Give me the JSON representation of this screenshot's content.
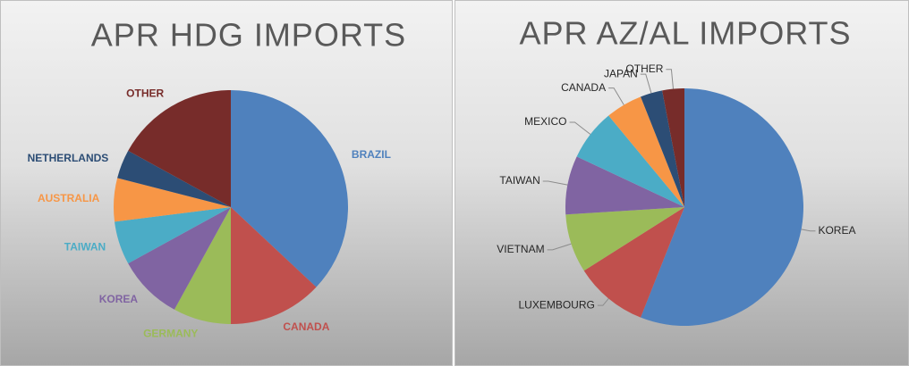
{
  "chart_data": [
    {
      "type": "pie",
      "title": "APR HDG IMPORTS",
      "categories": [
        "BRAZIL",
        "CANADA",
        "GERMANY",
        "KOREA",
        "TAIWAN",
        "AUSTRALIA",
        "NETHERLANDS",
        "OTHER"
      ],
      "values": [
        37,
        13,
        8,
        9,
        6,
        6,
        4,
        17
      ],
      "colors": [
        "#4f81bd",
        "#c0504d",
        "#9bbb59",
        "#8064a2",
        "#4bacc6",
        "#f79646",
        "#2c4d75",
        "#772c2a"
      ],
      "labels_colored": true
    },
    {
      "type": "pie",
      "title": "APR AZ/AL IMPORTS",
      "categories": [
        "KOREA",
        "LUXEMBOURG",
        "VIETNAM",
        "TAIWAN",
        "MEXICO",
        "CANADA",
        "JAPAN",
        "OTHER"
      ],
      "values": [
        56,
        10,
        8,
        8,
        7,
        5,
        3,
        3
      ],
      "colors": [
        "#4f81bd",
        "#c0504d",
        "#9bbb59",
        "#8064a2",
        "#4bacc6",
        "#f79646",
        "#2c4d75",
        "#772c2a"
      ],
      "labels_colored": false
    }
  ]
}
